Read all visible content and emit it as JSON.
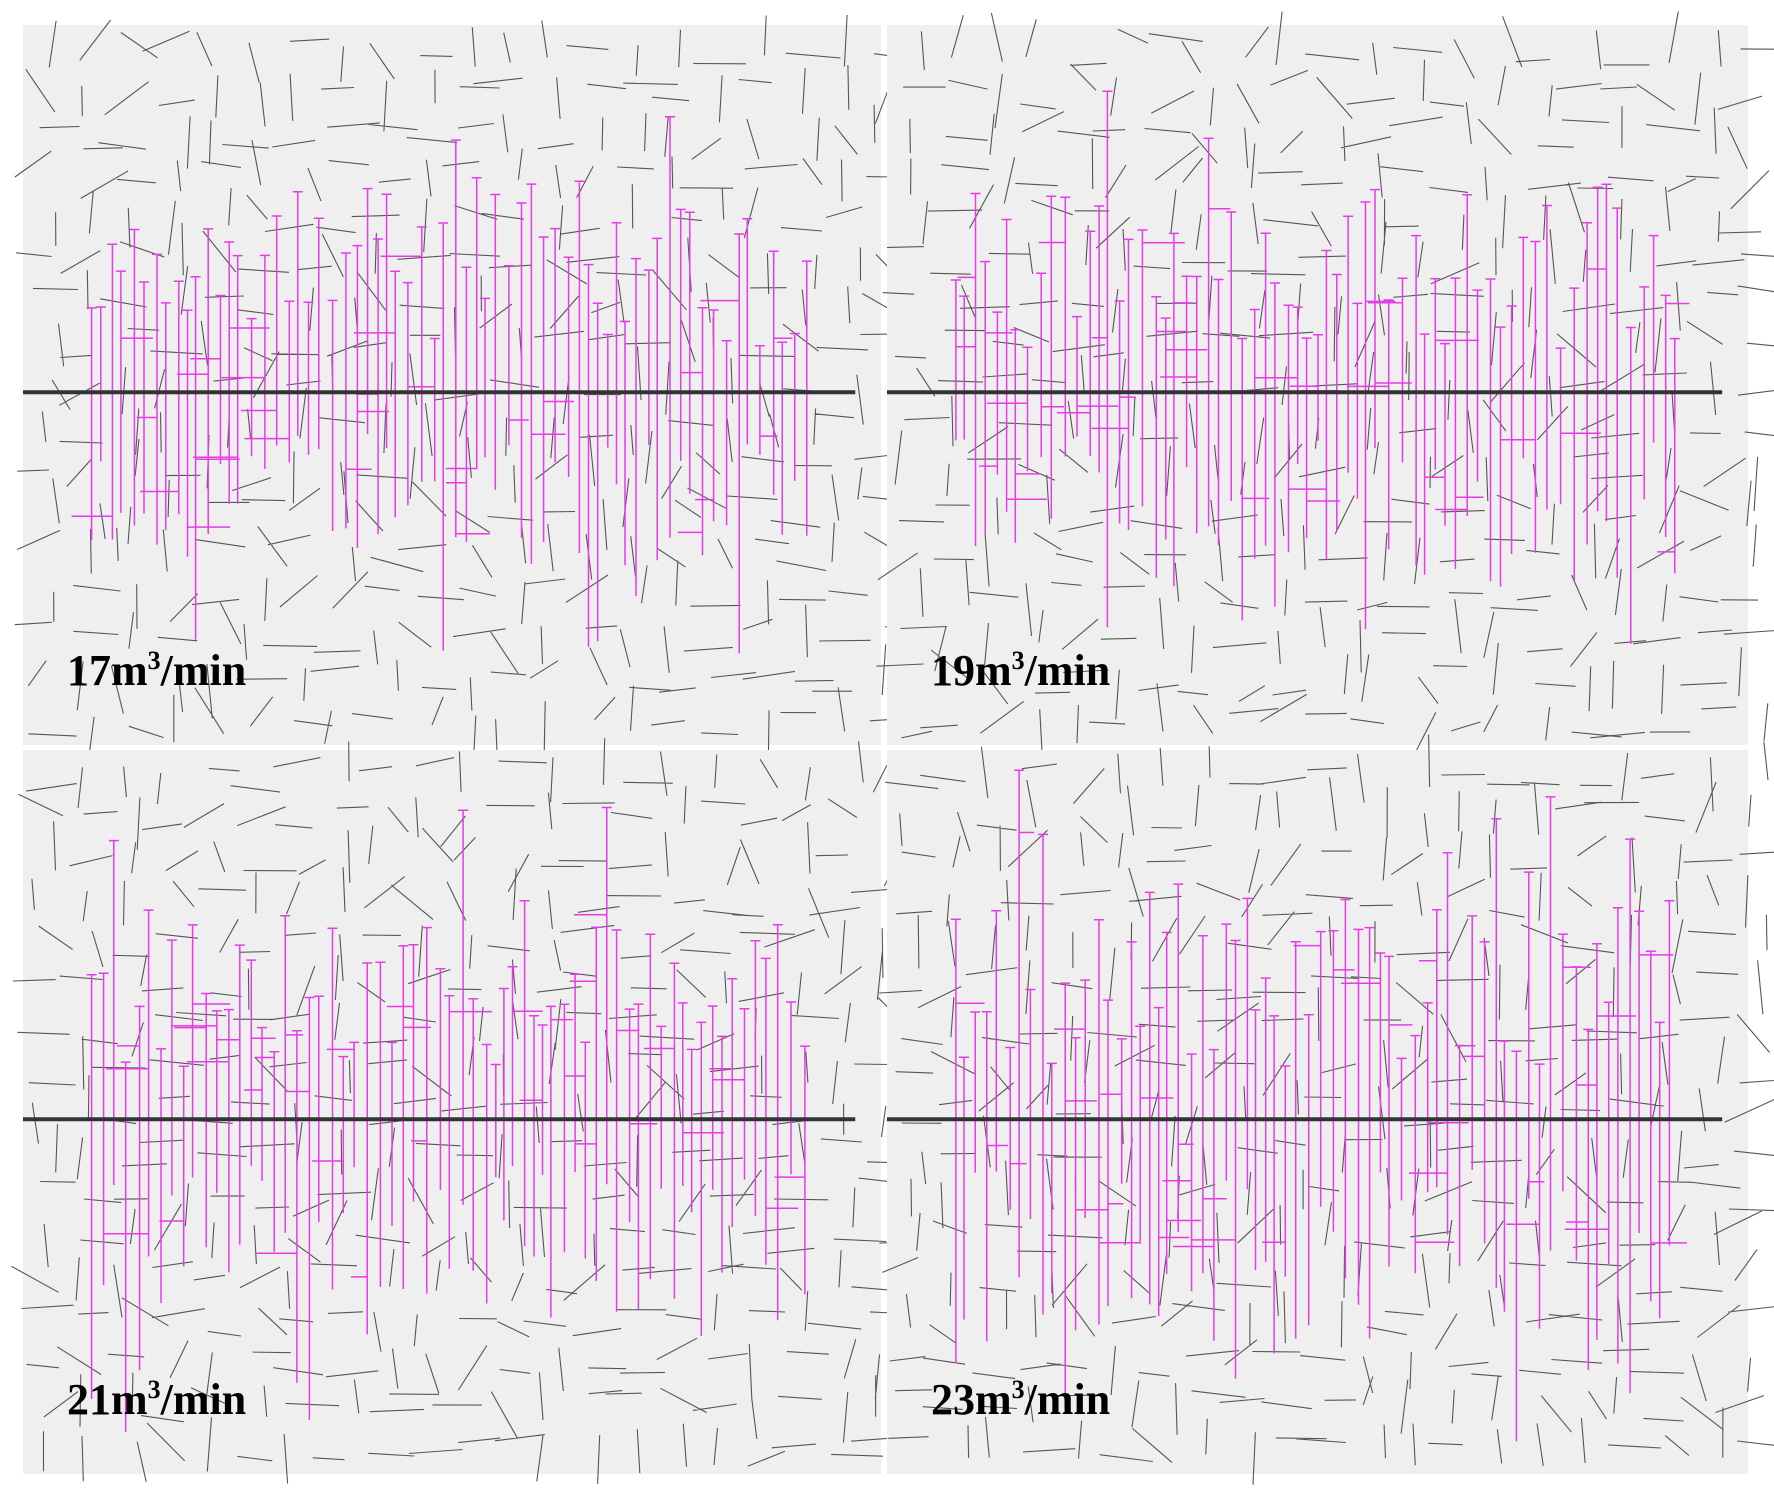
{
  "panels": [
    {
      "value": "17m",
      "sup": "3",
      "unit": "/min"
    },
    {
      "value": "19m",
      "sup": "3",
      "unit": "/min"
    },
    {
      "value": "21m",
      "sup": "3",
      "unit": "/min"
    },
    {
      "value": "23m",
      "sup": "3",
      "unit": "/min"
    }
  ]
}
